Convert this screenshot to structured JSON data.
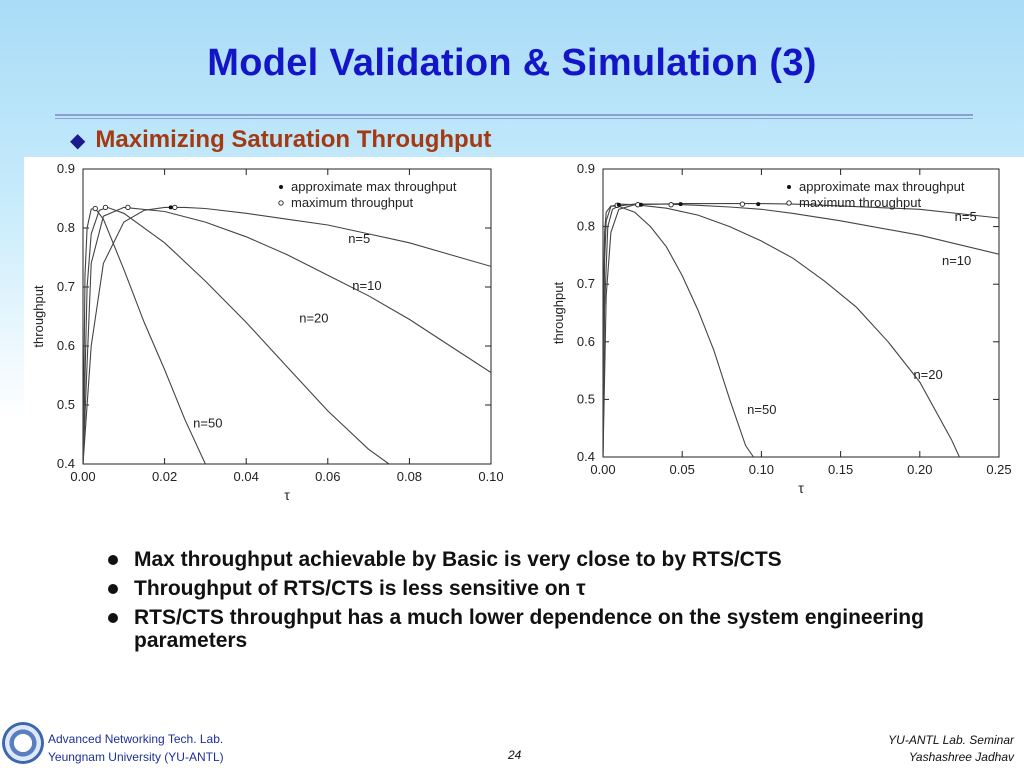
{
  "slide": {
    "title": "Model Validation & Simulation (3)",
    "subtitle": "Maximizing Saturation Throughput",
    "subtitle_bullet": "◆",
    "bullets": [
      "Max throughput achievable by Basic is very close to by RTS/CTS",
      "Throughput of RTS/CTS is less sensitive on τ",
      "RTS/CTS throughput has a much lower dependence on the system engineering parameters"
    ],
    "footer": {
      "lab": "Advanced Networking Tech. Lab.",
      "university": "Yeungnam University (YU-ANTL)",
      "page": "24",
      "seminar": "YU-ANTL Lab. Seminar",
      "author": "Yashashree Jadhav"
    }
  },
  "chart_data": [
    {
      "type": "line",
      "xlabel": "τ",
      "ylabel": "throughput",
      "xlim": [
        0,
        0.1
      ],
      "ylim": [
        0.4,
        0.9
      ],
      "xticks": [
        "0.00",
        "0.02",
        "0.04",
        "0.06",
        "0.08",
        "0.10"
      ],
      "yticks": [
        "0.4",
        "0.5",
        "0.6",
        "0.7",
        "0.8",
        "0.9"
      ],
      "legend_position": "top-right",
      "legend": [
        "approximate max throughput",
        "maximum throughput"
      ],
      "series": [
        {
          "name": "n=5",
          "x": [
            0.0,
            0.002,
            0.005,
            0.01,
            0.015,
            0.02,
            0.025,
            0.03,
            0.04,
            0.05,
            0.06,
            0.07,
            0.08,
            0.09,
            0.1
          ],
          "y": [
            0.4,
            0.6,
            0.74,
            0.81,
            0.83,
            0.835,
            0.835,
            0.833,
            0.825,
            0.815,
            0.805,
            0.79,
            0.775,
            0.755,
            0.735
          ]
        },
        {
          "name": "n=10",
          "x": [
            0.0,
            0.002,
            0.005,
            0.01,
            0.02,
            0.03,
            0.04,
            0.05,
            0.06,
            0.07,
            0.08,
            0.09,
            0.1
          ],
          "y": [
            0.4,
            0.74,
            0.82,
            0.835,
            0.828,
            0.81,
            0.785,
            0.755,
            0.72,
            0.685,
            0.645,
            0.6,
            0.555
          ]
        },
        {
          "name": "n=20",
          "x": [
            0.0,
            0.001,
            0.002,
            0.004,
            0.006,
            0.01,
            0.02,
            0.03,
            0.04,
            0.05,
            0.06,
            0.07,
            0.075
          ],
          "y": [
            0.4,
            0.7,
            0.79,
            0.83,
            0.835,
            0.825,
            0.775,
            0.71,
            0.64,
            0.565,
            0.49,
            0.425,
            0.4
          ]
        },
        {
          "name": "n=50",
          "x": [
            0.0,
            0.0005,
            0.001,
            0.002,
            0.003,
            0.005,
            0.01,
            0.015,
            0.02,
            0.025,
            0.03
          ],
          "y": [
            0.4,
            0.72,
            0.8,
            0.832,
            0.833,
            0.815,
            0.73,
            0.64,
            0.56,
            0.475,
            0.4
          ]
        }
      ],
      "markers_approx": [
        {
          "x": 0.0215,
          "y": 0.835
        }
      ],
      "markers_max": [
        {
          "x": 0.003,
          "y": 0.833
        },
        {
          "x": 0.0055,
          "y": 0.835
        },
        {
          "x": 0.011,
          "y": 0.835
        },
        {
          "x": 0.0225,
          "y": 0.835
        }
      ],
      "annotations": [
        {
          "text": "n=5",
          "x": 0.065,
          "y": 0.775
        },
        {
          "text": "n=10",
          "x": 0.066,
          "y": 0.695
        },
        {
          "text": "n=20",
          "x": 0.053,
          "y": 0.64
        },
        {
          "text": "n=50",
          "x": 0.027,
          "y": 0.462
        }
      ]
    },
    {
      "type": "line",
      "xlabel": "τ",
      "ylabel": "throughput",
      "xlim": [
        0,
        0.25
      ],
      "ylim": [
        0.4,
        0.9
      ],
      "xticks": [
        "0.00",
        "0.05",
        "0.10",
        "0.15",
        "0.20",
        "0.25"
      ],
      "yticks": [
        "0.4",
        "0.5",
        "0.6",
        "0.7",
        "0.8",
        "0.9"
      ],
      "legend_position": "top-right",
      "legend": [
        "approximate max throughput",
        "maximum throughput"
      ],
      "series": [
        {
          "name": "n=5",
          "x": [
            0.0,
            0.002,
            0.005,
            0.01,
            0.02,
            0.05,
            0.08,
            0.1,
            0.12,
            0.15,
            0.2,
            0.25
          ],
          "y": [
            0.4,
            0.68,
            0.79,
            0.83,
            0.838,
            0.84,
            0.84,
            0.84,
            0.839,
            0.836,
            0.83,
            0.815
          ]
        },
        {
          "name": "n=10",
          "x": [
            0.0,
            0.001,
            0.003,
            0.006,
            0.01,
            0.02,
            0.04,
            0.06,
            0.08,
            0.1,
            0.12,
            0.15,
            0.2,
            0.25
          ],
          "y": [
            0.4,
            0.66,
            0.8,
            0.83,
            0.836,
            0.839,
            0.839,
            0.837,
            0.834,
            0.83,
            0.823,
            0.81,
            0.785,
            0.752
          ]
        },
        {
          "name": "n=20",
          "x": [
            0.0,
            0.0005,
            0.001,
            0.002,
            0.005,
            0.01,
            0.02,
            0.04,
            0.06,
            0.08,
            0.1,
            0.12,
            0.14,
            0.16,
            0.18,
            0.2,
            0.22,
            0.225
          ],
          "y": [
            0.4,
            0.62,
            0.74,
            0.81,
            0.835,
            0.839,
            0.838,
            0.832,
            0.82,
            0.8,
            0.775,
            0.745,
            0.705,
            0.66,
            0.6,
            0.53,
            0.43,
            0.4
          ]
        },
        {
          "name": "n=50",
          "x": [
            0.0,
            0.0003,
            0.0006,
            0.001,
            0.002,
            0.005,
            0.01,
            0.02,
            0.03,
            0.04,
            0.05,
            0.06,
            0.07,
            0.08,
            0.09,
            0.095
          ],
          "y": [
            0.4,
            0.6,
            0.72,
            0.79,
            0.825,
            0.836,
            0.835,
            0.825,
            0.8,
            0.765,
            0.715,
            0.655,
            0.585,
            0.5,
            0.42,
            0.4
          ]
        }
      ],
      "markers_approx": [
        {
          "x": 0.01,
          "y": 0.838
        },
        {
          "x": 0.024,
          "y": 0.838
        },
        {
          "x": 0.049,
          "y": 0.839
        },
        {
          "x": 0.098,
          "y": 0.839
        }
      ],
      "markers_max": [
        {
          "x": 0.009,
          "y": 0.837
        },
        {
          "x": 0.022,
          "y": 0.838
        },
        {
          "x": 0.043,
          "y": 0.838
        },
        {
          "x": 0.088,
          "y": 0.839
        }
      ],
      "annotations": [
        {
          "text": "n=5",
          "x": 0.222,
          "y": 0.81
        },
        {
          "text": "n=10",
          "x": 0.214,
          "y": 0.733
        },
        {
          "text": "n=20",
          "x": 0.196,
          "y": 0.535
        },
        {
          "text": "n=50",
          "x": 0.091,
          "y": 0.475
        }
      ]
    }
  ]
}
